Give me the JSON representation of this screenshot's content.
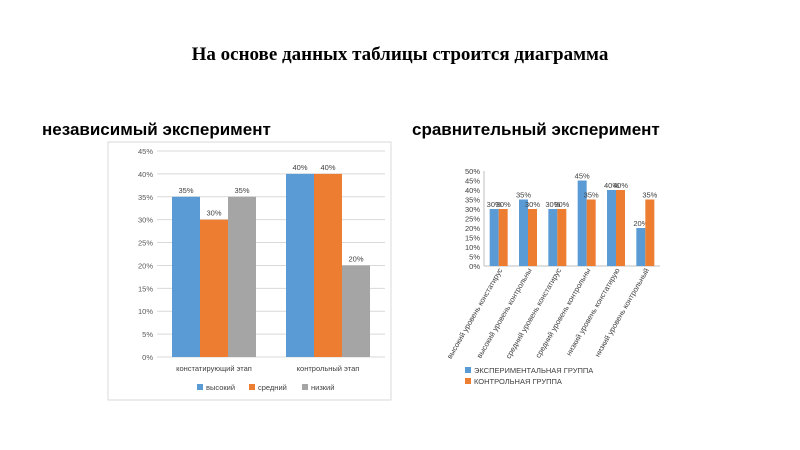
{
  "slide": {
    "title": "На основе данных таблицы строится диаграмма",
    "left_heading": "независимый эксперимент",
    "right_heading": "сравнительный эксперимент"
  },
  "colors": {
    "blue": "#5b9bd5",
    "orange": "#ed7d31",
    "gray": "#a5a5a5"
  },
  "chart_data": [
    {
      "type": "bar",
      "categories": [
        "констатирующий этап",
        "контрольный этап"
      ],
      "series": [
        {
          "name": "высокий",
          "values": [
            35,
            40
          ],
          "labels": [
            "35%",
            "40%"
          ]
        },
        {
          "name": "средний",
          "values": [
            30,
            40
          ],
          "labels": [
            "30%",
            "40%"
          ]
        },
        {
          "name": "низкий",
          "values": [
            35,
            20
          ],
          "labels": [
            "35%",
            "20%"
          ]
        }
      ],
      "ylim": [
        0,
        45
      ],
      "yticks": [
        "0%",
        "5%",
        "10%",
        "15%",
        "20%",
        "25%",
        "30%",
        "35%",
        "40%",
        "45%"
      ],
      "grid": true,
      "legend": "bottom"
    },
    {
      "type": "bar",
      "categories": [
        "высокий уровень констатирус",
        "высокий уровень контрольны",
        "средний уровень констатирус",
        "средний уровень контрольны",
        "низкий уровень констатирую",
        "низкий уровень контрольный"
      ],
      "series": [
        {
          "name": "ЭКСПЕРИМЕНТАЛЬНАЯ ГРУППА",
          "values": [
            30,
            35,
            30,
            45,
            40,
            20
          ],
          "labels": [
            "30%",
            "35%",
            "30%",
            "45%",
            "40%",
            "20%"
          ]
        },
        {
          "name": "КОНТРОЛЬНАЯ ГРУППА",
          "values": [
            30,
            30,
            30,
            35,
            40,
            35
          ],
          "labels": [
            "30%",
            "30%",
            "30%",
            "35%",
            "40%",
            "35%"
          ]
        }
      ],
      "ylim": [
        0,
        50
      ],
      "yticks": [
        "0%",
        "5%",
        "10%",
        "15%",
        "20%",
        "25%",
        "30%",
        "35%",
        "40%",
        "45%",
        "50%"
      ],
      "grid": false,
      "legend": "bottom"
    }
  ]
}
